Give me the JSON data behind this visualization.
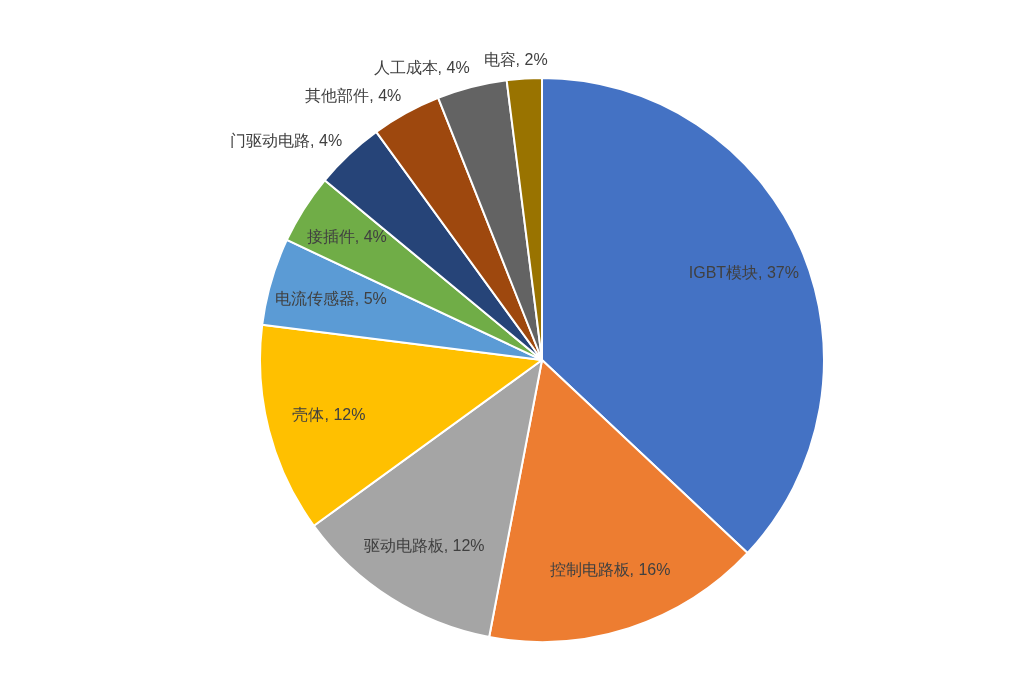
{
  "chart_data": {
    "type": "pie",
    "categories": [
      "IGBT模块",
      "控制电路板",
      "驱动电路板",
      "壳体",
      "电流传感器",
      "接插件",
      "门驱动电路",
      "其他部件",
      "人工成本",
      "电容"
    ],
    "values": [
      37,
      16,
      12,
      12,
      5,
      4,
      4,
      4,
      4,
      2
    ],
    "value_labels": [
      "37%",
      "16%",
      "12%",
      "12%",
      "5%",
      "4%",
      "4%",
      "4%",
      "4%",
      "2%"
    ],
    "colors": [
      "#4472c4",
      "#ed7d31",
      "#a5a5a5",
      "#ffc000",
      "#5b9bd5",
      "#70ad47",
      "#264478",
      "#9e480e",
      "#636363",
      "#997300"
    ]
  }
}
